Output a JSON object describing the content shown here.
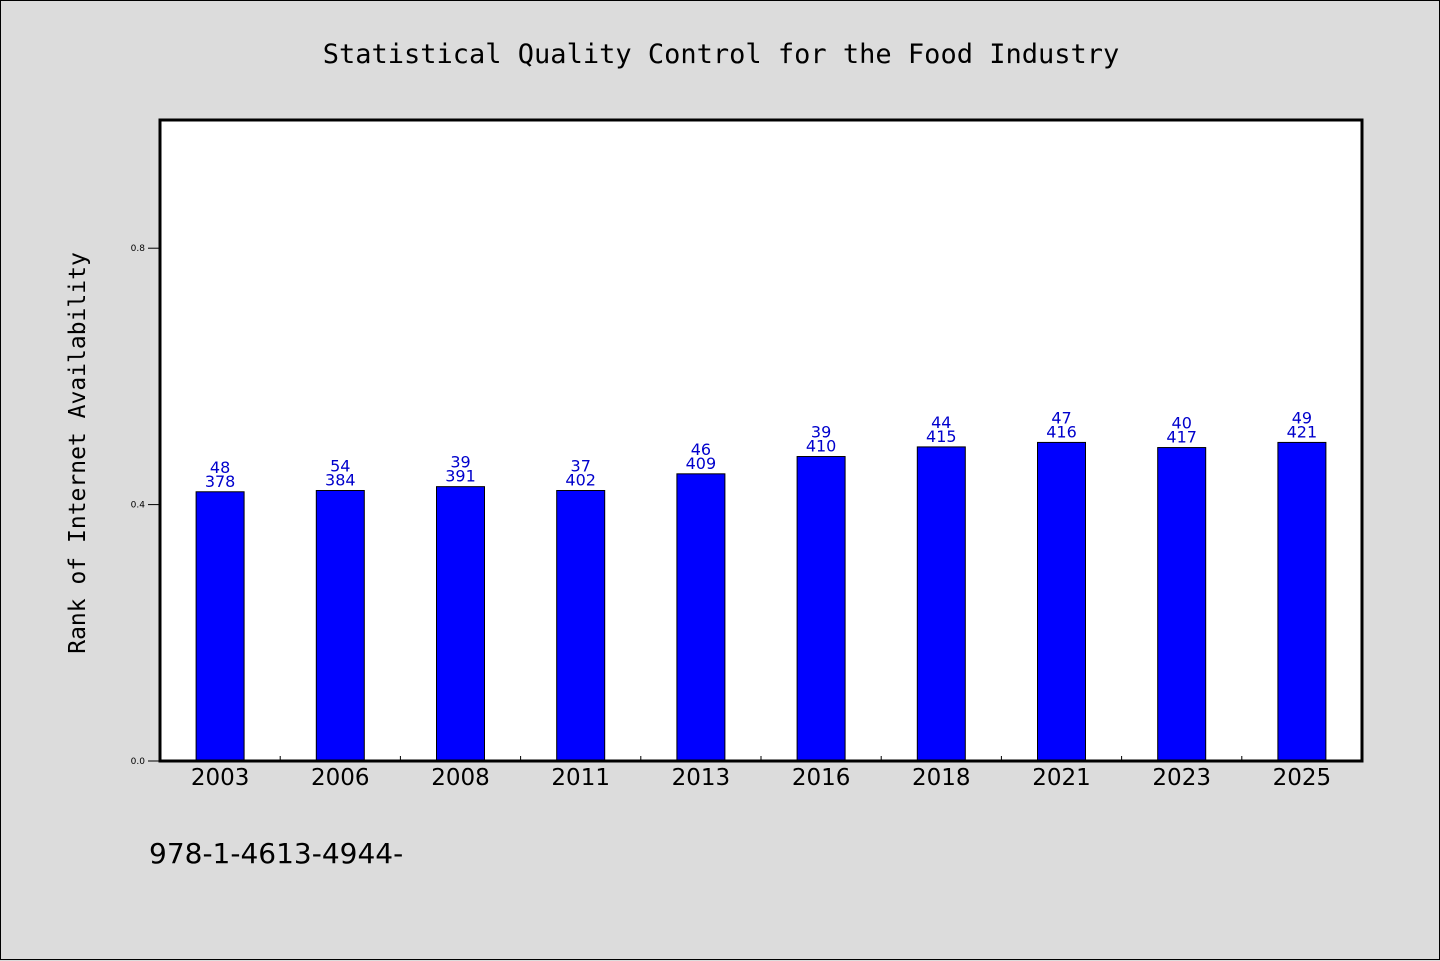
{
  "chart_data": {
    "type": "bar",
    "title": "Statistical Quality Control for the Food Industry",
    "xlabel": "",
    "ylabel": "Rank of Internet Availability",
    "categories": [
      "2003",
      "2006",
      "2008",
      "2011",
      "2013",
      "2016",
      "2018",
      "2021",
      "2023",
      "2025"
    ],
    "values": [
      0.42,
      0.422,
      0.428,
      0.422,
      0.448,
      0.475,
      0.49,
      0.497,
      0.489,
      0.497
    ],
    "top_labels": [
      "48",
      "54",
      "39",
      "37",
      "46",
      "39",
      "44",
      "47",
      "40",
      "49"
    ],
    "bottom_labels": [
      "378",
      "384",
      "391",
      "402",
      "409",
      "410",
      "415",
      "416",
      "417",
      "421"
    ],
    "ylim": [
      0,
      1.0
    ],
    "yticks": [
      0.0,
      0.4,
      0.8
    ],
    "ytick_labels": [
      "0.0",
      "0.4",
      "0.8"
    ],
    "grid": false,
    "bar_color": "#0000ff",
    "label_color": "#0000cc"
  },
  "footnote": "978-1-4613-4944-"
}
